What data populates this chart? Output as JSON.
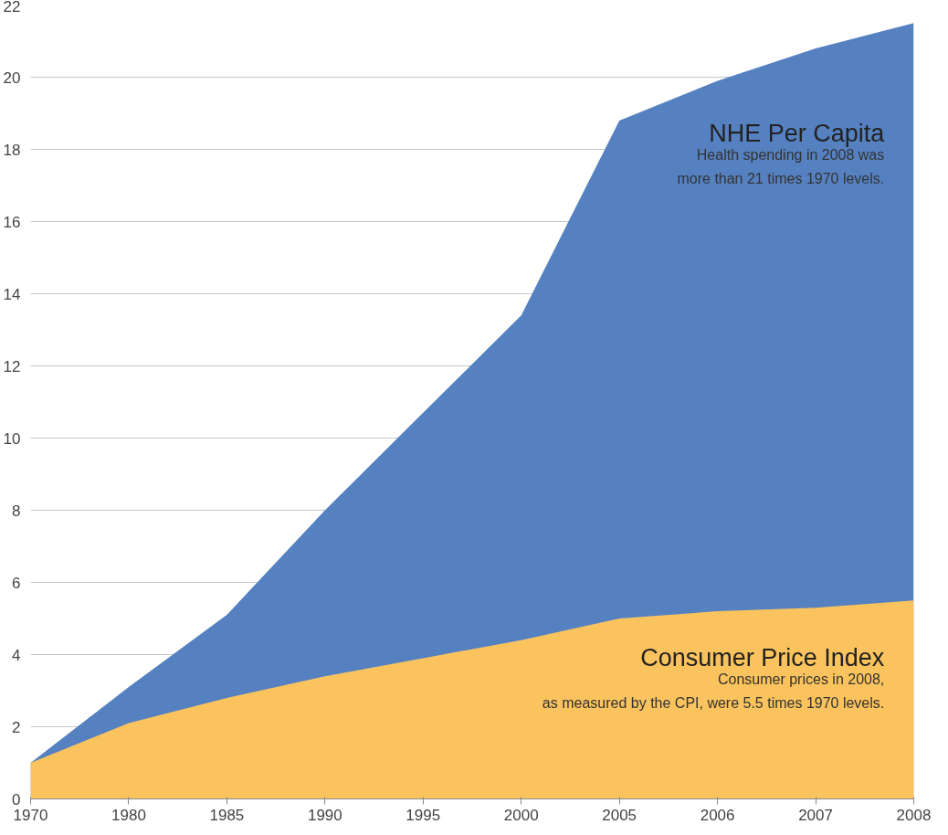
{
  "chart_data": {
    "type": "area",
    "categories": [
      "1970",
      "1980",
      "1985",
      "1990",
      "1995",
      "2000",
      "2005",
      "2006",
      "2007",
      "2008"
    ],
    "series": [
      {
        "name": "NHE Per Capita",
        "color": "#5581c1",
        "values": [
          1,
          3.1,
          5.1,
          8.0,
          10.7,
          13.4,
          18.8,
          19.9,
          20.8,
          21.5
        ]
      },
      {
        "name": "Consumer Price Index",
        "color": "#fbc35d",
        "values": [
          1,
          2.1,
          2.8,
          3.4,
          3.9,
          4.4,
          5.0,
          5.2,
          5.3,
          5.5
        ]
      }
    ],
    "annotations": [
      "Health spending in 2008 was\nmore than 21 times 1970 levels.",
      "Consumer prices in 2008,\nas measured by the CPI, were 5.5 times 1970 levels."
    ],
    "ylim": [
      0,
      22
    ],
    "yticks": [
      0,
      2,
      4,
      6,
      8,
      10,
      12,
      14,
      16,
      18,
      20,
      22
    ],
    "grid": "y"
  }
}
